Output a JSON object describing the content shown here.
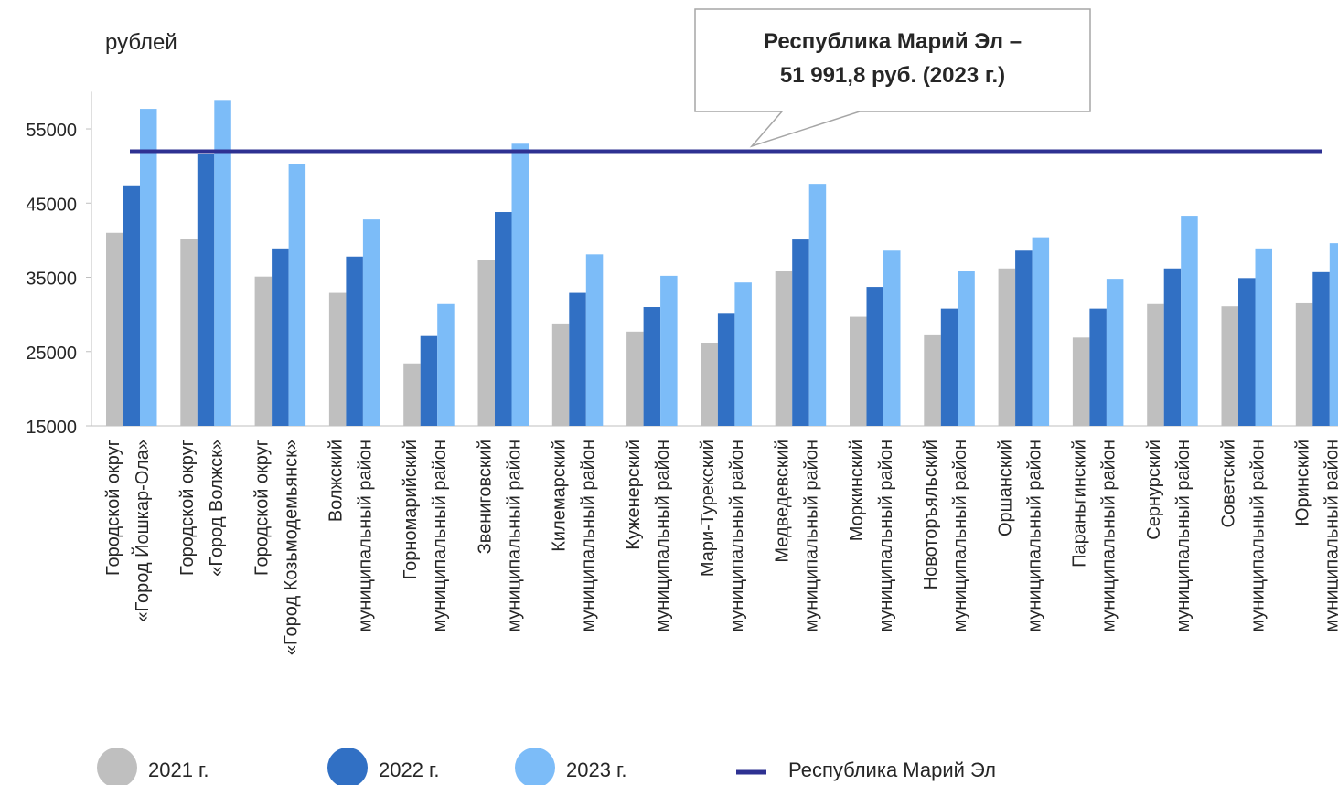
{
  "chart_data": {
    "type": "bar",
    "y_label": "рублей",
    "annotation": [
      "Республика Марий Эл –",
      "51 991,8 руб. (2023 г.)"
    ],
    "categories": [
      [
        "Городской округ",
        "«Город Йошкар-Ола»"
      ],
      [
        "Городской округ",
        "«Город Волжск»"
      ],
      [
        "Городской округ",
        "«Город Козьмодемьянск»"
      ],
      [
        "Волжский",
        "муниципальный район"
      ],
      [
        "Горномарийский",
        "муниципальный район"
      ],
      [
        "Звениговский",
        "муниципальный район"
      ],
      [
        "Килемарский",
        "муниципальный район"
      ],
      [
        "Куженерский",
        "муниципальный район"
      ],
      [
        "Мари-Турекский",
        "муниципальный район"
      ],
      [
        "Медведевский",
        "муниципальный район"
      ],
      [
        "Моркинский",
        "муниципальный район"
      ],
      [
        "Новоторъяльский",
        "муниципальный район"
      ],
      [
        "Оршанский",
        "муниципальный район"
      ],
      [
        "Параньгинский",
        "муниципальный район"
      ],
      [
        "Сернурский",
        "муниципальный район"
      ],
      [
        "Советский",
        "муниципальный район"
      ],
      [
        "Юринский",
        "муниципальный район"
      ]
    ],
    "series": [
      {
        "name": "2021 г.",
        "color": "#bfbfbf",
        "values": [
          41000,
          40200,
          35100,
          32900,
          23400,
          37300,
          28800,
          27700,
          26200,
          35900,
          29700,
          27200,
          36200,
          26900,
          31400,
          31100,
          31500
        ]
      },
      {
        "name": "2022 г.",
        "color": "#3170c4",
        "values": [
          47400,
          51600,
          38900,
          37800,
          27100,
          43800,
          32900,
          31000,
          30100,
          40100,
          33700,
          30800,
          38600,
          30800,
          36200,
          34900,
          35700
        ]
      },
      {
        "name": "2023 г.",
        "color": "#7cbcf8",
        "values": [
          57700,
          58900,
          50300,
          42800,
          31400,
          53000,
          38100,
          35200,
          34300,
          47600,
          38600,
          35800,
          40400,
          34800,
          43300,
          38900,
          39600
        ]
      }
    ],
    "reference": {
      "name": "Республика Марий Эл",
      "value": 51991.8,
      "color": "#2e3192"
    },
    "ylim": [
      15000,
      60000
    ],
    "yticks": [
      15000,
      25000,
      35000,
      45000,
      55000
    ],
    "grid": false,
    "legend": "bottom"
  }
}
